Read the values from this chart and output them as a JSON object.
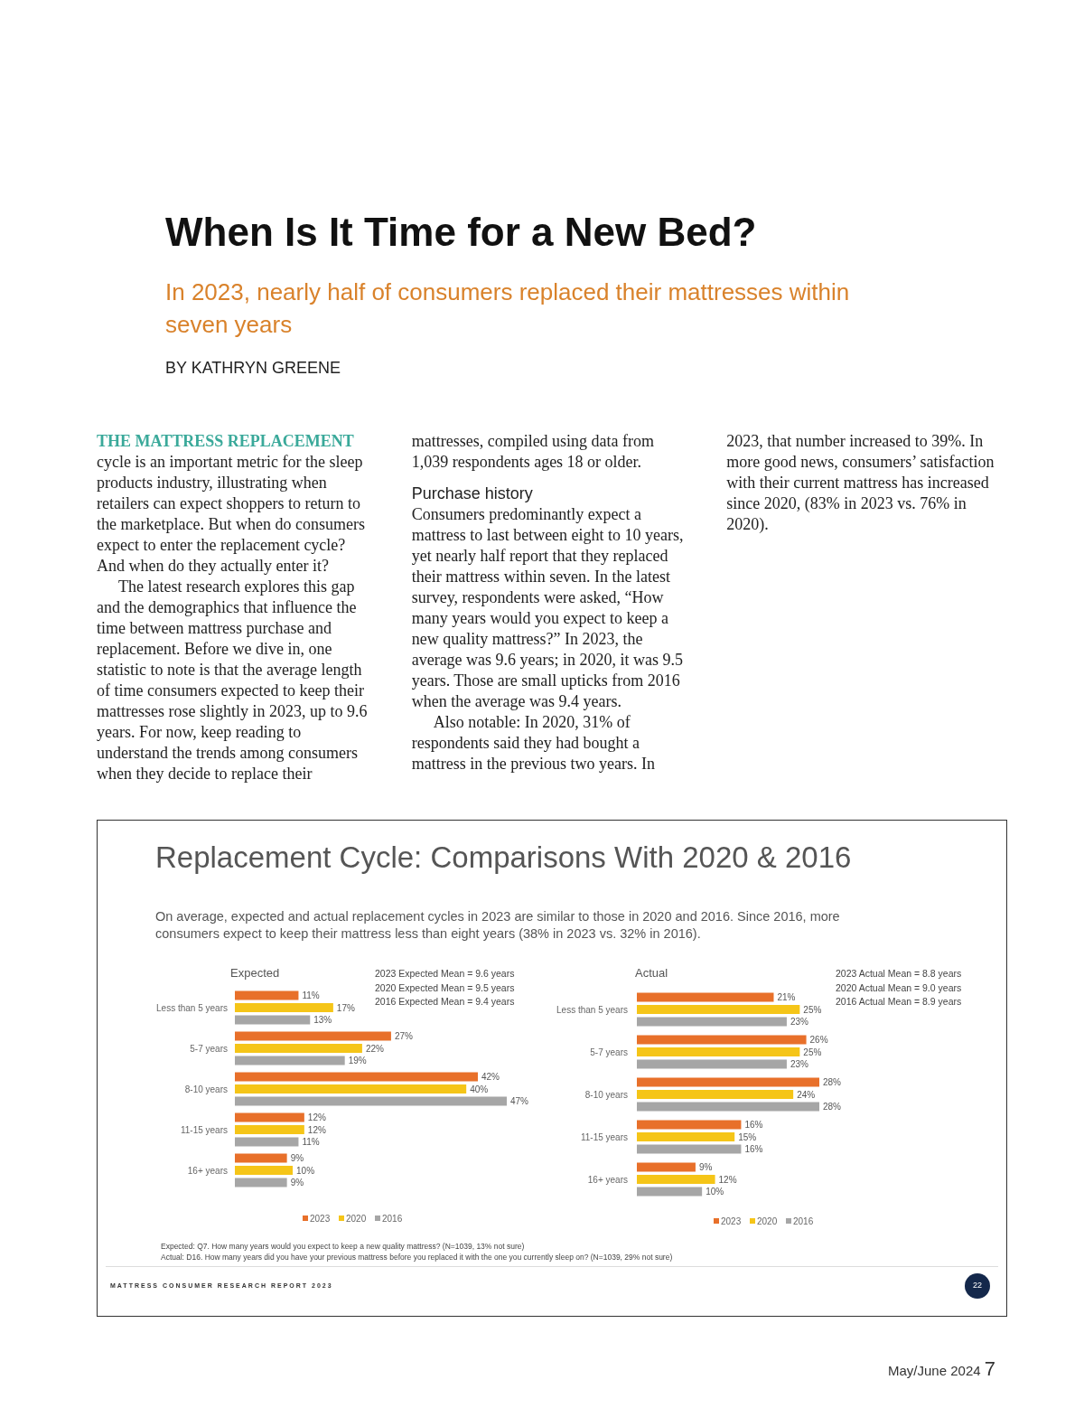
{
  "chart_data": [
    {
      "type": "other",
      "title": "When Is It Time for a New Bed?",
      "subtitle": "In 2023, nearly half of consumers replaced their mattresses within seven years",
      "annotations": [
        "BY KATHRYN GREENE",
        "THE MATTRESS REPLACEMENT",
        "cycle is an important metric for the sleep products industry, illustrating when retailers can expect shoppers to return to the marketplace. But when do consumers expect to enter the replacement cycle? And when do they actually enter it?",
        "The latest research explores this gap and the demographics that influence the time between mattress purchase and replacement. Before we dive in, one statistic to note is that the average length of time consumers expected to keep their mattresses rose slightly in 2023, up to 9.6 years. For now, keep reading to understand the trends among consumers when they decide to replace their mattresses, compiled using data from 1,039 respondents ages 18 or older.",
        "Purchase history",
        "Consumers predominantly expect a mattress to last between eight to 10 years, yet nearly half report that they replaced their mattress within seven. In the latest survey, respondents were asked, “How many years would you expect to keep a new quality mattress?” In 2023, the average was 9.6 years; in 2020, it was 9.5 years. Those are small upticks from 2016 when the average was 9.4 years.",
        "Also notable: In 2020, 31% of respondents said they had bought a mattress in the previous two years. In 2023, that number increased to 39%. In more good news, consumers’ satisfaction with their current mattress has increased since 2020, (83% in 2023 vs. 76% in 2020).",
        "May/June 2024",
        "7"
      ]
    },
    {
      "type": "other",
      "title": "Replacement Cycle: Comparisons With 2020 & 2016",
      "subtitle": "On average, expected and actual replacement cycles in 2023 are similar to those in 2020 and 2016. Since 2016, more consumers expect to keep their mattress less than eight years (38% in 2023 vs. 32% in 2016).",
      "annotations": [
        "Expected: Q7. How many years would you expect to keep a new quality mattress? (N=1039, 13% not sure)",
        "Actual: D16. How many years did you have your previous mattress before you replaced it with the one you currently sleep on? (N=1039, 29% not sure)",
        "MATTRESS CONSUMER RESEARCH REPORT 2023",
        "22"
      ]
    },
    {
      "type": "bar",
      "orientation": "horizontal",
      "title": "Expected",
      "categories": [
        "Less than 5 years",
        "5-7 years",
        "8-10 years",
        "11-15 years",
        "16+ years"
      ],
      "tick_labels": "y",
      "legend": "bottom",
      "annotations": [
        "2023 Expected Mean = 9.6 years",
        "2020 Expected Mean = 9.5 years",
        "2016 Expected Mean = 9.4 years"
      ],
      "series": [
        {
          "name": "2023",
          "color": "#e8702a",
          "values": [
            11,
            27,
            42,
            12,
            9
          ],
          "value_labels": [
            "11%",
            "27%",
            "42%",
            "12%",
            "9%"
          ]
        },
        {
          "name": "2020",
          "color": "#f5c518",
          "values": [
            17,
            22,
            40,
            12,
            10
          ],
          "value_labels": [
            "17%",
            "22%",
            "40%",
            "12%",
            "10%"
          ]
        },
        {
          "name": "2016",
          "color": "#a6a6a6",
          "values": [
            13,
            19,
            47,
            11,
            9
          ],
          "value_labels": [
            "13%",
            "19%",
            "47%",
            "11%",
            "9%"
          ]
        }
      ]
    },
    {
      "type": "bar",
      "orientation": "horizontal",
      "title": "Actual",
      "categories": [
        "Less than 5 years",
        "5-7 years",
        "8-10 years",
        "11-15 years",
        "16+ years"
      ],
      "tick_labels": "y",
      "legend": "bottom",
      "annotations": [
        "2023 Actual Mean = 8.8 years",
        "2020 Actual Mean = 9.0 years",
        "2016 Actual Mean = 8.9 years"
      ],
      "series": [
        {
          "name": "2023",
          "color": "#e8702a",
          "values": [
            21,
            26,
            28,
            16,
            9
          ],
          "value_labels": [
            "21%",
            "26%",
            "28%",
            "16%",
            "9%"
          ]
        },
        {
          "name": "2020",
          "color": "#f5c518",
          "values": [
            25,
            25,
            24,
            15,
            12
          ],
          "value_labels": [
            "25%",
            "25%",
            "24%",
            "15%",
            "12%"
          ]
        },
        {
          "name": "2016",
          "color": "#a6a6a6",
          "values": [
            23,
            23,
            28,
            16,
            10
          ],
          "value_labels": [
            "23%",
            "23%",
            "28%",
            "16%",
            "10%"
          ]
        }
      ]
    }
  ]
}
